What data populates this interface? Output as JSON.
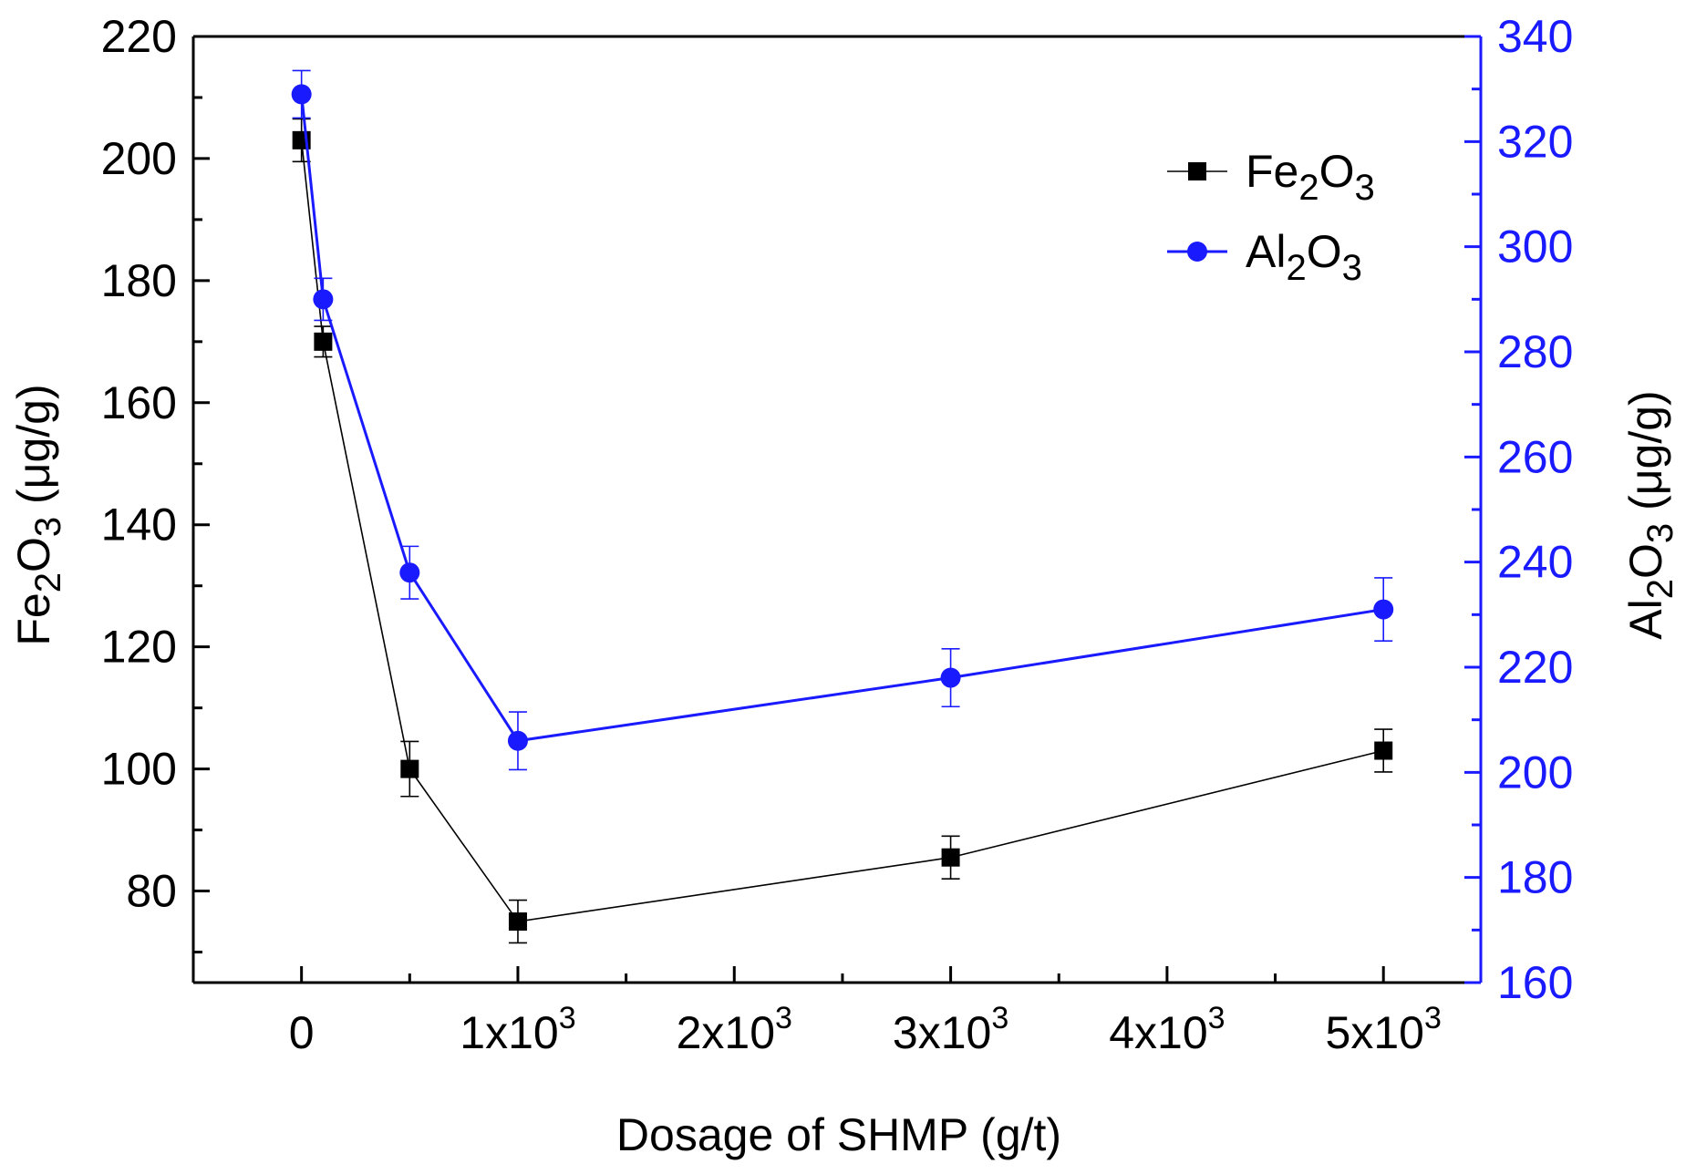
{
  "chart_data": {
    "type": "line",
    "title": "",
    "xlabel": "Dosage of SHMP (g/t)",
    "ylabel_left": {
      "main": "Fe",
      "sub1": "2",
      "mid": "O",
      "sub2": "3",
      "tail": " (μg/g)"
    },
    "ylabel_right": {
      "main": "Al",
      "sub1": "2",
      "mid": "O",
      "sub2": "3",
      "tail": " (μg/g)"
    },
    "xlim": [
      -500,
      5450
    ],
    "ylim_left": [
      65,
      220
    ],
    "ylim_right": [
      160,
      340
    ],
    "x_ticks": [
      {
        "value": 0,
        "mantissa": "0",
        "exp": ""
      },
      {
        "value": 1000,
        "mantissa": "1x10",
        "exp": "3"
      },
      {
        "value": 2000,
        "mantissa": "2x10",
        "exp": "3"
      },
      {
        "value": 3000,
        "mantissa": "3x10",
        "exp": "3"
      },
      {
        "value": 4000,
        "mantissa": "4x10",
        "exp": "3"
      },
      {
        "value": 5000,
        "mantissa": "5x10",
        "exp": "3"
      }
    ],
    "y_ticks_left": [
      80,
      100,
      120,
      140,
      160,
      180,
      200,
      220
    ],
    "y_ticks_right": [
      160,
      180,
      200,
      220,
      240,
      260,
      280,
      300,
      320,
      340
    ],
    "series": [
      {
        "name": "Fe2O3",
        "legend": {
          "main": "Fe",
          "sub1": "2",
          "mid": "O",
          "sub2": "3"
        },
        "axis": "left",
        "color": "#000000",
        "marker": "square",
        "x": [
          0,
          100,
          500,
          1000,
          3000,
          5000
        ],
        "y": [
          203,
          170,
          100,
          75,
          85.5,
          103
        ],
        "err": [
          3.5,
          2.5,
          4.5,
          3.5,
          3.5,
          3.5
        ]
      },
      {
        "name": "Al2O3",
        "legend": {
          "main": "Al",
          "sub1": "2",
          "mid": "O",
          "sub2": "3"
        },
        "axis": "right",
        "color": "#1a1aff",
        "marker": "circle",
        "x": [
          0,
          100,
          500,
          1000,
          3000,
          5000
        ],
        "y": [
          329,
          290,
          238,
          206,
          218,
          231
        ],
        "err": [
          4.5,
          4,
          5,
          5.5,
          5.5,
          6
        ]
      }
    ]
  }
}
